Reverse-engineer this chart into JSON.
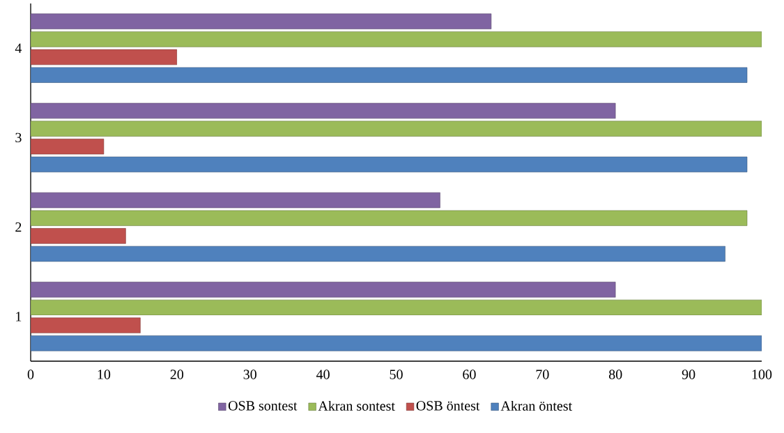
{
  "chart_data": {
    "type": "bar",
    "orientation": "horizontal",
    "categories": [
      "4",
      "3",
      "2",
      "1"
    ],
    "series": [
      {
        "name": "Akran öntest",
        "color": "#4f81bd",
        "values": [
          98,
          98,
          95,
          100
        ]
      },
      {
        "name": "OSB öntest",
        "color": "#c0504d",
        "values": [
          20,
          10,
          13,
          15
        ]
      },
      {
        "name": "Akran sontest",
        "color": "#9bbb59",
        "values": [
          100,
          100,
          98,
          100
        ]
      },
      {
        "name": "OSB sontest",
        "color": "#8064a2",
        "values": [
          63,
          80,
          56,
          80
        ]
      }
    ],
    "xlim": [
      0,
      100
    ],
    "xticks": [
      0,
      10,
      20,
      30,
      40,
      50,
      60,
      70,
      80,
      90,
      100
    ],
    "grid": false,
    "legend": "bottom"
  }
}
